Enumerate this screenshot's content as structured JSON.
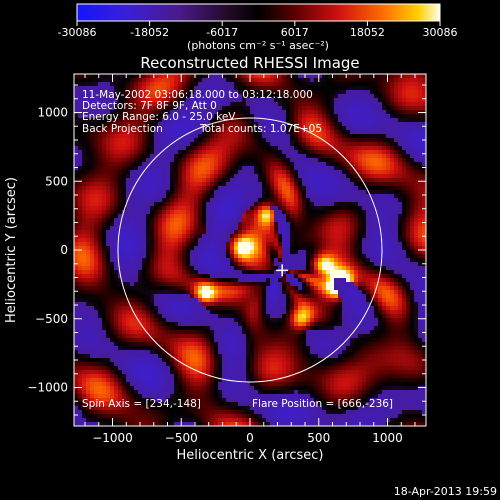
{
  "colorbar": {
    "ticks": [
      "-30086",
      "-18052",
      "-6017",
      "6017",
      "18052",
      "30086"
    ],
    "unit_label": "(photons cm⁻² s⁻¹ asec⁻²)",
    "range": [
      -30086,
      30086
    ]
  },
  "chart_data": {
    "type": "heatmap",
    "title": "Reconstructed RHESSI Image",
    "xlabel": "Heliocentric X (arcsec)",
    "ylabel": "Heliocentric Y (arcsec)",
    "xlim": [
      -1280,
      1280
    ],
    "ylim": [
      -1280,
      1280
    ],
    "x_ticks": [
      -1000,
      -500,
      0,
      500,
      1000
    ],
    "y_ticks": [
      -1000,
      -500,
      0,
      500,
      1000
    ],
    "x_tick_labels": [
      "−1000",
      "−500",
      "0",
      "500",
      "1000"
    ],
    "y_tick_labels": [
      "−1000",
      "−500",
      "0",
      "500",
      "1000"
    ],
    "solar_disk_radius": 960,
    "spin_axis": [
      234,
      -148
    ],
    "flare_position": [
      666,
      -236
    ],
    "annotations": [
      "11-May-2002 03:06:18.000 to 03:12:18.000",
      "Detectors: 7F 8F 9F, Att 0",
      "Energy Range: 6.0 - 25.0 keV",
      "Back Projection",
      "Total counts: 1.07E+05"
    ],
    "spin_axis_label": "Spin Axis = [234,-148]",
    "flare_position_label": "Flare Position = [666,-236]"
  },
  "footer": {
    "timestamp": "18-Apr-2013 19:59"
  }
}
